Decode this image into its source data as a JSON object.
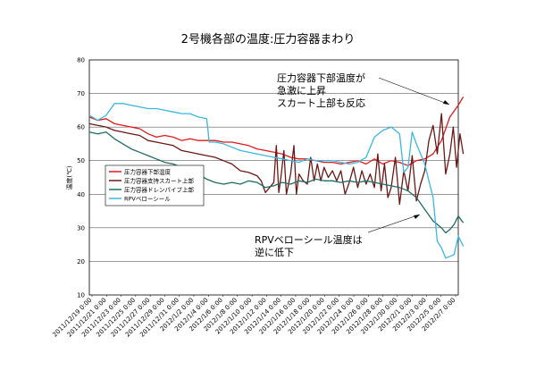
{
  "chart_data": {
    "type": "line",
    "title": "2号機各部の温度:圧力容器まわり",
    "ylabel": "温度(℃)",
    "xlabel": "",
    "ylim": [
      10,
      80
    ],
    "yticks": [
      10,
      20,
      30,
      40,
      50,
      60,
      70,
      80
    ],
    "xlim": [
      0,
      44
    ],
    "grid": "horizontal",
    "legend": "middle-left",
    "x_tick_labels": [
      "2011/12/19 0:00",
      "2011/12/21 0:00",
      "2011/12/23 0:00",
      "2011/12/25 0:00",
      "2011/12/27 0:00",
      "2011/12/29 0:00",
      "2011/12/31 0:00",
      "2012/1/2 0:00",
      "2012/1/4 0:00",
      "2012/1/6 0:00",
      "2012/1/8 0:00",
      "2012/1/10 0:00",
      "2012/1/12 0:00",
      "2012/1/14 0:00",
      "2012/1/16 0:00",
      "2012/1/18 0:00",
      "2012/1/20 0:00",
      "2012/1/22 0:00",
      "2012/1/24 0:00",
      "2012/1/26 0:00",
      "2012/1/28 0:00",
      "2012/1/30 0:00",
      "2012/2/1 0:00",
      "2012/2/3 0:00",
      "2012/2/5 0:00",
      "2012/2/7 0:00"
    ],
    "series": [
      {
        "name": "圧力容器下部温度",
        "color": "#e0191b",
        "points": [
          [
            0,
            63
          ],
          [
            1,
            62
          ],
          [
            2,
            62.5
          ],
          [
            3,
            61
          ],
          [
            4,
            60.5
          ],
          [
            5,
            60
          ],
          [
            6,
            59.5
          ],
          [
            7,
            58
          ],
          [
            8,
            57
          ],
          [
            9,
            57.5
          ],
          [
            10,
            57
          ],
          [
            11,
            56
          ],
          [
            12,
            56.5
          ],
          [
            13,
            56
          ],
          [
            14,
            56
          ],
          [
            15,
            56
          ],
          [
            16,
            55.5
          ],
          [
            17,
            55.5
          ],
          [
            18,
            55
          ],
          [
            19,
            54.5
          ],
          [
            20,
            53.5
          ],
          [
            21,
            53
          ],
          [
            22,
            52.5
          ],
          [
            23,
            52
          ],
          [
            24,
            51
          ],
          [
            25,
            50.5
          ],
          [
            26,
            50.5
          ],
          [
            27,
            50
          ],
          [
            28,
            49.5
          ],
          [
            29,
            49.5
          ],
          [
            30,
            49
          ],
          [
            31,
            49.5
          ],
          [
            32,
            50
          ],
          [
            33,
            49
          ],
          [
            34,
            50.5
          ],
          [
            35,
            49
          ],
          [
            36,
            50
          ],
          [
            37,
            49.5
          ],
          [
            38,
            48.5
          ],
          [
            39,
            50
          ],
          [
            40,
            50.5
          ],
          [
            41,
            52
          ],
          [
            42,
            56
          ],
          [
            43,
            63
          ],
          [
            44,
            66.5
          ],
          [
            44.6,
            69
          ]
        ]
      },
      {
        "name": "圧力容器支持スカート上部",
        "color": "#6b1714",
        "points": [
          [
            0,
            61
          ],
          [
            1,
            60.5
          ],
          [
            2,
            60
          ],
          [
            3,
            59
          ],
          [
            4,
            58.5
          ],
          [
            5,
            58
          ],
          [
            6,
            57.5
          ],
          [
            7,
            56
          ],
          [
            8,
            55.5
          ],
          [
            9,
            55
          ],
          [
            10,
            54.5
          ],
          [
            11,
            53
          ],
          [
            12,
            52.5
          ],
          [
            13,
            52
          ],
          [
            14,
            51.5
          ],
          [
            15,
            51
          ],
          [
            16,
            50
          ],
          [
            17,
            49
          ],
          [
            18,
            47
          ],
          [
            19,
            46.5
          ],
          [
            20,
            45.5
          ],
          [
            20.5,
            44
          ],
          [
            21,
            40.5
          ],
          [
            21.5,
            42
          ],
          [
            22,
            43.5
          ],
          [
            22.3,
            54.5
          ],
          [
            22.6,
            40.5
          ],
          [
            22.9,
            46
          ],
          [
            23.2,
            53
          ],
          [
            23.5,
            40
          ],
          [
            24,
            46
          ],
          [
            24.4,
            54.5
          ],
          [
            24.7,
            40
          ],
          [
            25,
            46
          ],
          [
            25.5,
            44
          ],
          [
            26,
            43
          ],
          [
            26.4,
            51
          ],
          [
            26.8,
            44
          ],
          [
            27.2,
            49
          ],
          [
            27.6,
            44
          ],
          [
            28,
            48
          ],
          [
            28.5,
            45
          ],
          [
            29,
            47
          ],
          [
            29.5,
            44
          ],
          [
            30,
            47
          ],
          [
            30.5,
            40
          ],
          [
            31,
            43.5
          ],
          [
            31.5,
            48
          ],
          [
            32,
            42
          ],
          [
            32.5,
            47
          ],
          [
            33,
            43
          ],
          [
            33.5,
            46
          ],
          [
            34,
            42
          ],
          [
            34.4,
            52
          ],
          [
            34.8,
            41
          ],
          [
            35.2,
            49
          ],
          [
            35.6,
            39
          ],
          [
            36,
            42
          ],
          [
            36.5,
            51
          ],
          [
            37,
            37
          ],
          [
            37.5,
            47
          ],
          [
            38,
            41
          ],
          [
            38.5,
            51.5
          ],
          [
            39,
            38
          ],
          [
            39.5,
            43
          ],
          [
            40,
            47
          ],
          [
            40.5,
            56
          ],
          [
            41,
            60.5
          ],
          [
            41.5,
            52
          ],
          [
            42,
            64
          ],
          [
            42.5,
            46
          ],
          [
            43,
            52
          ],
          [
            43.4,
            60
          ],
          [
            43.8,
            48
          ],
          [
            44.2,
            58
          ],
          [
            44.6,
            52
          ]
        ]
      },
      {
        "name": "圧力容器ドレンパイプ上部",
        "color": "#1f6d62",
        "points": [
          [
            0,
            58.5
          ],
          [
            1,
            58
          ],
          [
            2,
            58.5
          ],
          [
            3,
            56.5
          ],
          [
            4,
            55
          ],
          [
            5,
            53.5
          ],
          [
            6,
            52.5
          ],
          [
            7,
            51.5
          ],
          [
            8,
            50.5
          ],
          [
            9,
            49.5
          ],
          [
            10,
            49
          ],
          [
            11,
            48
          ],
          [
            12,
            47
          ],
          [
            13,
            46
          ],
          [
            14,
            44.5
          ],
          [
            15,
            43.5
          ],
          [
            16,
            43
          ],
          [
            17,
            43.5
          ],
          [
            18,
            43
          ],
          [
            19,
            44
          ],
          [
            20,
            43.5
          ],
          [
            21,
            42
          ],
          [
            22,
            42.5
          ],
          [
            23,
            43.5
          ],
          [
            24,
            43
          ],
          [
            25,
            44
          ],
          [
            26,
            43.5
          ],
          [
            27,
            44.5
          ],
          [
            28,
            44
          ],
          [
            29,
            44
          ],
          [
            30,
            43.5
          ],
          [
            31,
            44
          ],
          [
            32,
            43.5
          ],
          [
            33,
            44
          ],
          [
            34,
            43.5
          ],
          [
            35,
            43
          ],
          [
            36,
            42.5
          ],
          [
            37,
            42
          ],
          [
            38,
            41
          ],
          [
            39,
            39
          ],
          [
            40,
            35.5
          ],
          [
            41,
            32
          ],
          [
            42,
            30
          ],
          [
            42.5,
            28.5
          ],
          [
            43,
            29.5
          ],
          [
            43.5,
            31
          ],
          [
            44,
            33.5
          ],
          [
            44.6,
            31.5
          ]
        ]
      },
      {
        "name": "RPVベローシール",
        "color": "#39b7e3",
        "points": [
          [
            0,
            63.5
          ],
          [
            1,
            62
          ],
          [
            2,
            63.5
          ],
          [
            3,
            67
          ],
          [
            4,
            67
          ],
          [
            5,
            66.5
          ],
          [
            6,
            66
          ],
          [
            7,
            65.5
          ],
          [
            8,
            65.5
          ],
          [
            9,
            65
          ],
          [
            10,
            64.5
          ],
          [
            11,
            64
          ],
          [
            12,
            64
          ],
          [
            13,
            63
          ],
          [
            14,
            62.5
          ],
          [
            14.3,
            55.5
          ],
          [
            15,
            55.5
          ],
          [
            16,
            55
          ],
          [
            17,
            54
          ],
          [
            18,
            53
          ],
          [
            19,
            52.5
          ],
          [
            20,
            52
          ],
          [
            21,
            51.5
          ],
          [
            22,
            51
          ],
          [
            23,
            50.5
          ],
          [
            24,
            50
          ],
          [
            25,
            49.5
          ],
          [
            26,
            50.5
          ],
          [
            27,
            50
          ],
          [
            28,
            50
          ],
          [
            29,
            50
          ],
          [
            30,
            49.5
          ],
          [
            31,
            49
          ],
          [
            32,
            49.5
          ],
          [
            33,
            51
          ],
          [
            34,
            57
          ],
          [
            35,
            59
          ],
          [
            36,
            60
          ],
          [
            37,
            58
          ],
          [
            37.5,
            46.5
          ],
          [
            38,
            48
          ],
          [
            38.5,
            58.5
          ],
          [
            39,
            55
          ],
          [
            40,
            49
          ],
          [
            40.5,
            44
          ],
          [
            41,
            39
          ],
          [
            41.5,
            26
          ],
          [
            42,
            24
          ],
          [
            42.5,
            21
          ],
          [
            43,
            21.5
          ],
          [
            43.5,
            22
          ],
          [
            44,
            27.5
          ],
          [
            44.6,
            24.5
          ]
        ]
      }
    ],
    "annotations": [
      {
        "lines": [
          "圧力容器下部温度が",
          "急激に上昇",
          "スカート上部も反応"
        ]
      },
      {
        "lines": [
          "RPVベローシール温度は",
          "逆に低下"
        ]
      }
    ]
  }
}
